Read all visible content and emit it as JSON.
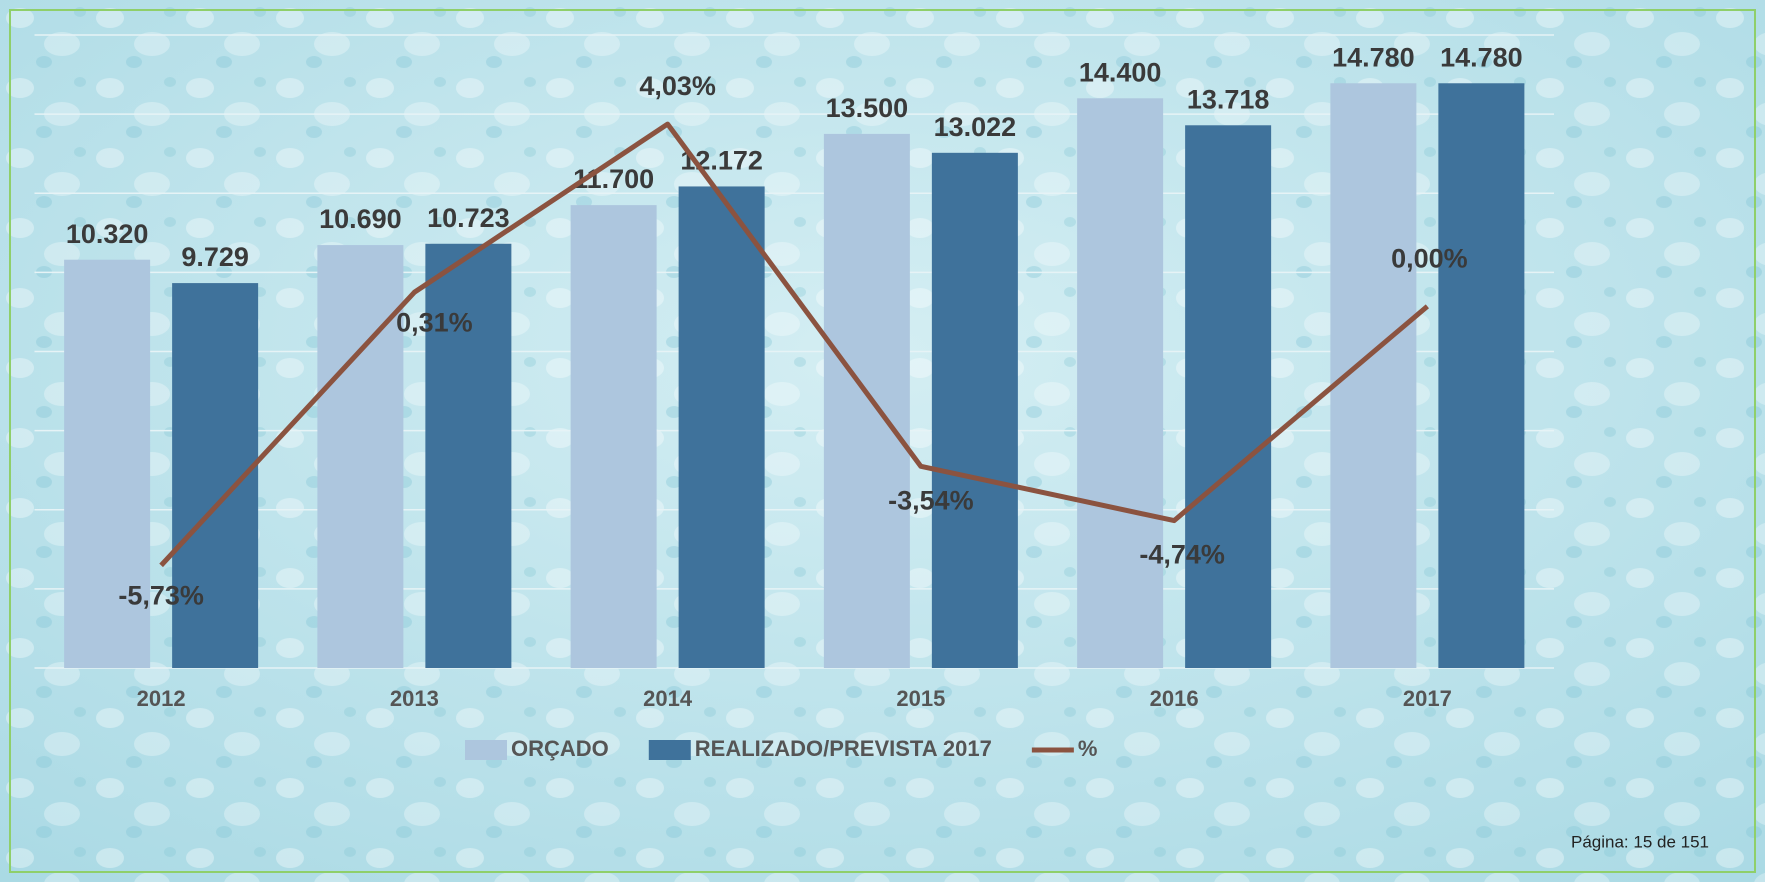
{
  "chart_data": {
    "type": "bar_line",
    "categories": [
      "2012",
      "2013",
      "2014",
      "2015",
      "2016",
      "2017"
    ],
    "series": [
      {
        "name": "ORÇADO",
        "type": "bar",
        "color": "#adc6de",
        "values": [
          10320,
          10690,
          11700,
          13500,
          14400,
          14780
        ],
        "value_labels": [
          "10.320",
          "10.690",
          "11.700",
          "13.500",
          "14.400",
          "14.780"
        ]
      },
      {
        "name": "REALIZADO/PREVISTA 2017",
        "type": "bar",
        "color": "#3f729b",
        "values": [
          9729,
          10723,
          12172,
          13022,
          13718,
          14780
        ],
        "value_labels": [
          "9.729",
          "10.723",
          "12.172",
          "13.022",
          "13.718",
          "14.780"
        ]
      },
      {
        "name": "%",
        "type": "line",
        "axis": "y2",
        "color": "#8b5340",
        "values": [
          -5.73,
          0.31,
          4.03,
          -3.54,
          -4.74,
          0.0
        ],
        "value_labels": [
          "-5,73%",
          "0,31%",
          "4,03%",
          "-3,54%",
          "-4,74%",
          "0,00%"
        ]
      }
    ],
    "ylim": [
      0,
      16000
    ],
    "yticks": [
      0,
      2000,
      4000,
      6000,
      8000,
      10000,
      12000,
      14000,
      16000
    ],
    "y2lim": [
      -8,
      6
    ],
    "y2ticks": [
      -8,
      -6,
      -4,
      -2,
      0,
      2,
      4,
      6
    ],
    "grid": true,
    "legend": "bottom",
    "footer": "Página: 15 de 151"
  }
}
